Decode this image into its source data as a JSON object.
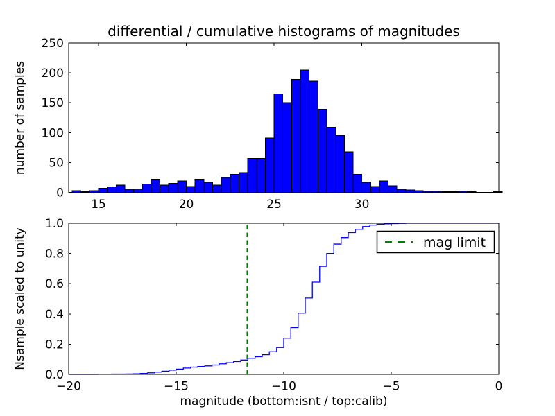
{
  "title": "differential / cumulative histograms of magnitudes",
  "top": {
    "ylabel": "number of samples"
  },
  "bottom": {
    "ylabel": "Nsample scaled to unity",
    "xlabel": "magnitude (bottom:isnt / top:calib)",
    "legend_label": "mag limit"
  },
  "colors": {
    "bar_fill": "#0000ff",
    "bar_edge": "#000000",
    "cumulative_line": "#0000ff",
    "mag_limit_line": "#008000",
    "axis": "#000000",
    "background": "#ffffff"
  },
  "chart_data": [
    {
      "type": "bar",
      "subtype": "histogram",
      "title": "differential / cumulative histograms of magnitudes",
      "xlabel": "",
      "ylabel": "number of samples",
      "xlim": [
        13.3,
        37.8
      ],
      "ylim": [
        0,
        250
      ],
      "xticks": [
        15,
        20,
        25,
        30
      ],
      "xtick_labels": [
        "15",
        "20",
        "25",
        "30"
      ],
      "yticks": [
        0,
        50,
        100,
        150,
        200,
        250
      ],
      "ytick_labels": [
        "0",
        "50",
        "100",
        "150",
        "200",
        "250"
      ],
      "grid": false,
      "bin_start": 13.5,
      "bin_width": 0.5,
      "counts": [
        3,
        1,
        3,
        7,
        9,
        12,
        5,
        6,
        14,
        22,
        12,
        15,
        19,
        10,
        22,
        17,
        12,
        25,
        30,
        33,
        57,
        57,
        91,
        165,
        150,
        189,
        205,
        186,
        139,
        109,
        95,
        68,
        30,
        17,
        10,
        19,
        11,
        5,
        4,
        3,
        2,
        2,
        1,
        1,
        2,
        1,
        0,
        0,
        1
      ]
    },
    {
      "type": "line",
      "subtype": "cumulative-step",
      "title": "",
      "xlabel": "magnitude (bottom:isnt / top:calib)",
      "ylabel": "Nsample scaled to unity",
      "xlim": [
        -20,
        0
      ],
      "ylim": [
        0,
        1
      ],
      "xticks": [
        -20,
        -15,
        -10,
        -5,
        0
      ],
      "xtick_labels": [
        "−20",
        "−15",
        "−10",
        "−5",
        "0"
      ],
      "yticks": [
        0,
        0.2,
        0.4,
        0.6,
        0.8,
        1.0
      ],
      "ytick_labels": [
        "0.0",
        "0.2",
        "0.4",
        "0.6",
        "0.8",
        "1.0"
      ],
      "grid": false,
      "legend": {
        "label": "mag limit",
        "position": "upper right"
      },
      "mag_limit_x": -11.7,
      "step_points": [
        [
          -20,
          0
        ],
        [
          -19.67,
          0
        ],
        [
          -19.33,
          0
        ],
        [
          -19,
          0
        ],
        [
          -18.67,
          0.001
        ],
        [
          -18.33,
          0.001
        ],
        [
          -18,
          0.002
        ],
        [
          -17.67,
          0.002
        ],
        [
          -17.33,
          0.003
        ],
        [
          -17,
          0.004
        ],
        [
          -16.67,
          0.006
        ],
        [
          -16.33,
          0.01
        ],
        [
          -16,
          0.015
        ],
        [
          -15.67,
          0.021
        ],
        [
          -15.33,
          0.028
        ],
        [
          -15,
          0.035
        ],
        [
          -14.67,
          0.042
        ],
        [
          -14.33,
          0.048
        ],
        [
          -14,
          0.052
        ],
        [
          -13.67,
          0.056
        ],
        [
          -13.33,
          0.062
        ],
        [
          -13,
          0.07
        ],
        [
          -12.67,
          0.077
        ],
        [
          -12.33,
          0.085
        ],
        [
          -12,
          0.095
        ],
        [
          -11.67,
          0.107
        ],
        [
          -11.33,
          0.117
        ],
        [
          -11,
          0.13
        ],
        [
          -10.67,
          0.15
        ],
        [
          -10.33,
          0.178
        ],
        [
          -10,
          0.24
        ],
        [
          -9.67,
          0.31
        ],
        [
          -9.33,
          0.405
        ],
        [
          -9,
          0.505
        ],
        [
          -8.67,
          0.61
        ],
        [
          -8.33,
          0.715
        ],
        [
          -8,
          0.8
        ],
        [
          -7.67,
          0.862
        ],
        [
          -7.33,
          0.905
        ],
        [
          -7,
          0.938
        ],
        [
          -6.67,
          0.96
        ],
        [
          -6.33,
          0.978
        ],
        [
          -6,
          0.988
        ],
        [
          -5.67,
          0.993
        ],
        [
          -5.33,
          0.996
        ],
        [
          -5,
          0.998
        ],
        [
          -4.67,
          0.999
        ],
        [
          -4.33,
          1
        ],
        [
          -4,
          1
        ],
        [
          -3.67,
          1
        ],
        [
          -3.33,
          1
        ],
        [
          -3,
          1
        ],
        [
          -2.67,
          1
        ],
        [
          -2.33,
          1
        ],
        [
          -2,
          1
        ],
        [
          -1.67,
          1
        ],
        [
          -1.33,
          1
        ],
        [
          -1,
          1
        ],
        [
          -0.67,
          1
        ],
        [
          -0.33,
          1
        ],
        [
          0,
          1
        ]
      ]
    }
  ]
}
